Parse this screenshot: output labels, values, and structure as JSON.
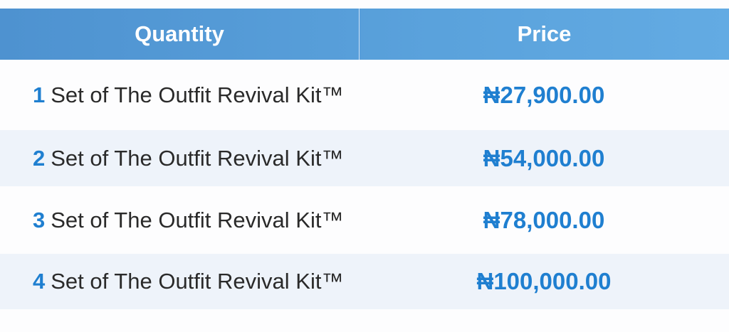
{
  "table": {
    "headers": {
      "quantity": "Quantity",
      "price": "Price"
    },
    "rows": [
      {
        "number": "1",
        "label": "Set of The Outfit Revival Kit™",
        "price": "₦27,900.00"
      },
      {
        "number": "2",
        "label": "Set of The Outfit Revival Kit™",
        "price": "₦54,000.00"
      },
      {
        "number": "3",
        "label": "Set of The Outfit Revival Kit™",
        "price": "₦78,000.00"
      },
      {
        "number": "4",
        "label": "Set of The Outfit Revival Kit™",
        "price": "₦100,000.00"
      }
    ]
  },
  "colors": {
    "header": "#5499d5",
    "accent": "#1f7fd0",
    "alt_row": "#eef3fa"
  }
}
